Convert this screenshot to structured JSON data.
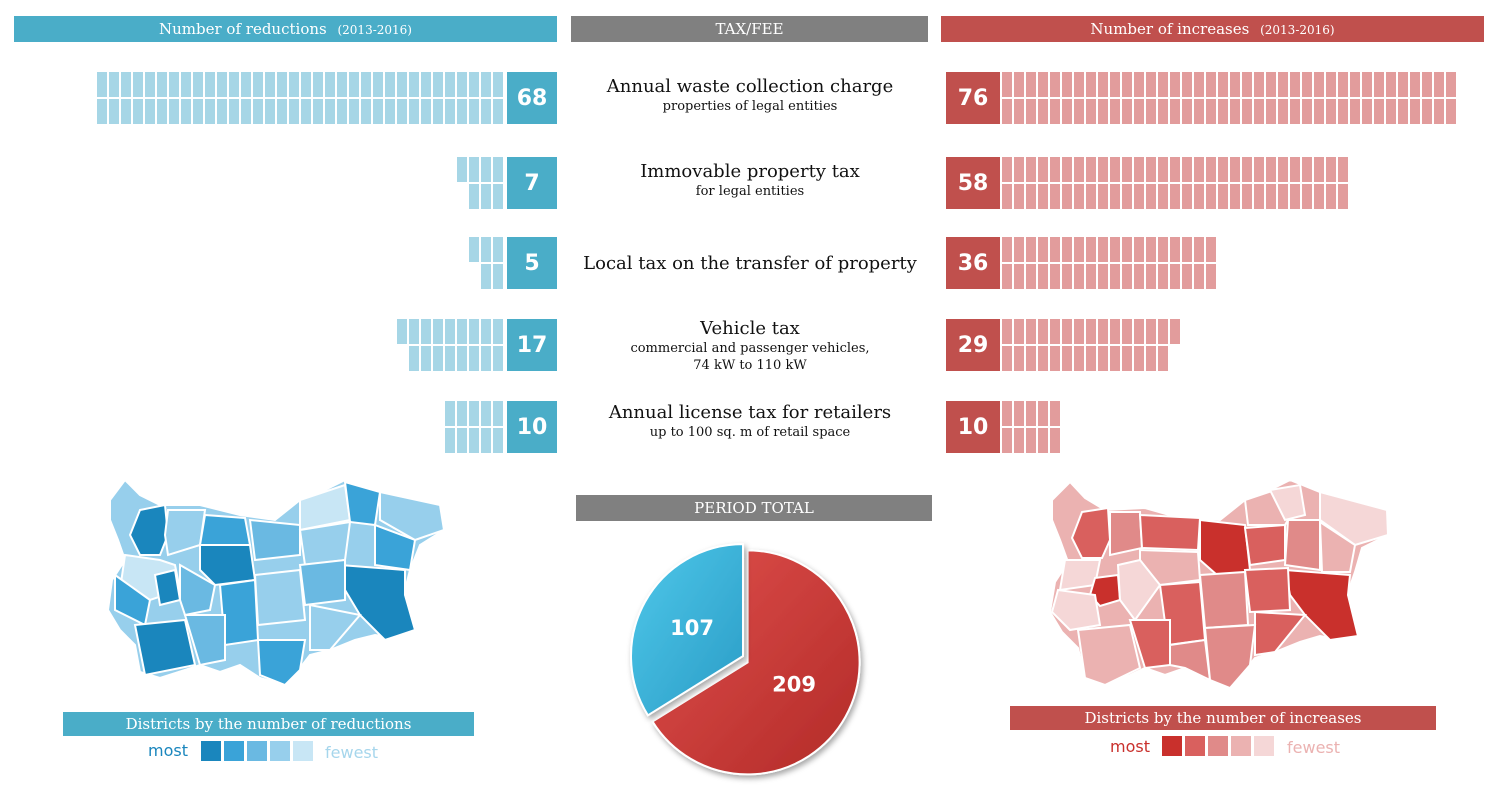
{
  "headers": {
    "reductions": "Number of reductions",
    "reductions_period": "(2013-2016)",
    "taxfee": "TAX/FEE",
    "increases": "Number of increases",
    "increases_period": "(2013-2016)",
    "period_total": "PERIOD TOTAL"
  },
  "chart_data": {
    "type": "bar",
    "categories": [
      "Annual waste collection charge",
      "Immovable property tax",
      "Local tax on the transfer of property",
      "Vehicle tax",
      "Annual license tax for retailers"
    ],
    "subtitles": [
      [
        "properties of legal entities"
      ],
      [
        "for legal entities"
      ],
      [],
      [
        "commercial and passenger vehicles,",
        "74 kW to 110 kW"
      ],
      [
        "up to 100 sq. m of retail space"
      ]
    ],
    "series": [
      {
        "name": "Number of reductions",
        "values": [
          68,
          7,
          5,
          17,
          10
        ]
      },
      {
        "name": "Number of increases",
        "values": [
          76,
          58,
          36,
          29,
          10
        ]
      }
    ],
    "totals": {
      "type": "pie",
      "values": [
        107,
        209
      ]
    }
  },
  "maps": {
    "reductions_title": "Districts by the number of reductions",
    "increases_title": "Districts by the number of increases",
    "legend_most": "most",
    "legend_fewest": "fewest",
    "blue_scale": [
      "#1a86bd",
      "#3aa3d8",
      "#6ab9e2",
      "#97cfec",
      "#c8e6f5"
    ],
    "red_scale": [
      "#c9302c",
      "#d9605e",
      "#e08a89",
      "#ebb2b1",
      "#f5d7d7"
    ]
  },
  "colors": {
    "blue": "#4aadc8",
    "blue_bar": "#a6d6e6",
    "red": "#c0504d",
    "red_bar": "#e29c9c",
    "gray": "#808080"
  }
}
